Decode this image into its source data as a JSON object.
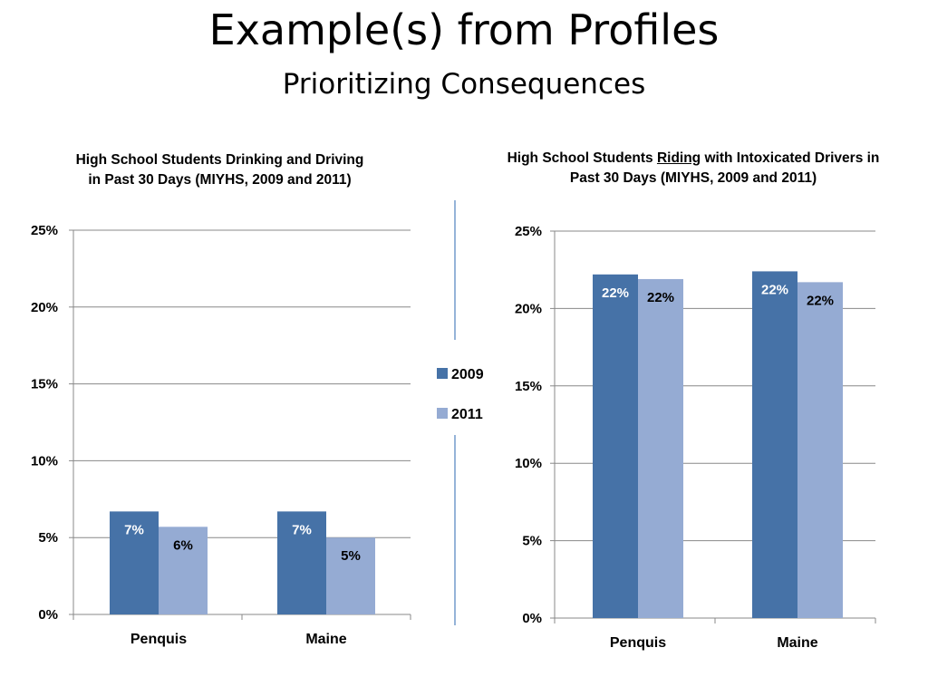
{
  "slide": {
    "title": "Example(s) from Profiles",
    "subtitle": "Prioritizing Consequences"
  },
  "colors": {
    "series_2009": "#4672a7",
    "series_2011": "#95abd3",
    "gridline": "#888888",
    "divider": "#4f81bd"
  },
  "legend": {
    "position": "center",
    "items": [
      "2009",
      "2011"
    ]
  },
  "chart_data": [
    {
      "type": "bar",
      "title": "High School Students Drinking and Driving in Past 30 Days (MIYHS, 2009 and 2011)",
      "title_lines": [
        "High School Students Drinking and Driving",
        "in Past 30 Days (MIYHS, 2009 and 2011)"
      ],
      "categories": [
        "Penquis",
        "Maine"
      ],
      "series": [
        {
          "name": "2009",
          "values": [
            0.067,
            0.067
          ],
          "labels": [
            "7%",
            "7%"
          ]
        },
        {
          "name": "2011",
          "values": [
            0.057,
            0.05
          ],
          "labels": [
            "6%",
            "5%"
          ]
        }
      ],
      "ylim": [
        0,
        0.25
      ],
      "yticks": [
        "0%",
        "5%",
        "10%",
        "15%",
        "20%",
        "25%"
      ],
      "grid": true,
      "xlabel": "",
      "ylabel": ""
    },
    {
      "type": "bar",
      "title": "High School Students Riding with Intoxicated Drivers in Past 30 Days (MIYHS, 2009 and 2011)",
      "title_parts": {
        "before": "High School Students ",
        "underlined": "Riding",
        "after": " with Intoxicated Drivers in",
        "line2": "Past 30 Days (MIYHS, 2009 and 2011)"
      },
      "categories": [
        "Penquis",
        "Maine"
      ],
      "series": [
        {
          "name": "2009",
          "values": [
            0.222,
            0.224
          ],
          "labels": [
            "22%",
            "22%"
          ]
        },
        {
          "name": "2011",
          "values": [
            0.219,
            0.217
          ],
          "labels": [
            "22%",
            "22%"
          ]
        }
      ],
      "ylim": [
        0,
        0.25
      ],
      "yticks": [
        "0%",
        "5%",
        "10%",
        "15%",
        "20%",
        "25%"
      ],
      "grid": true,
      "xlabel": "",
      "ylabel": ""
    }
  ]
}
